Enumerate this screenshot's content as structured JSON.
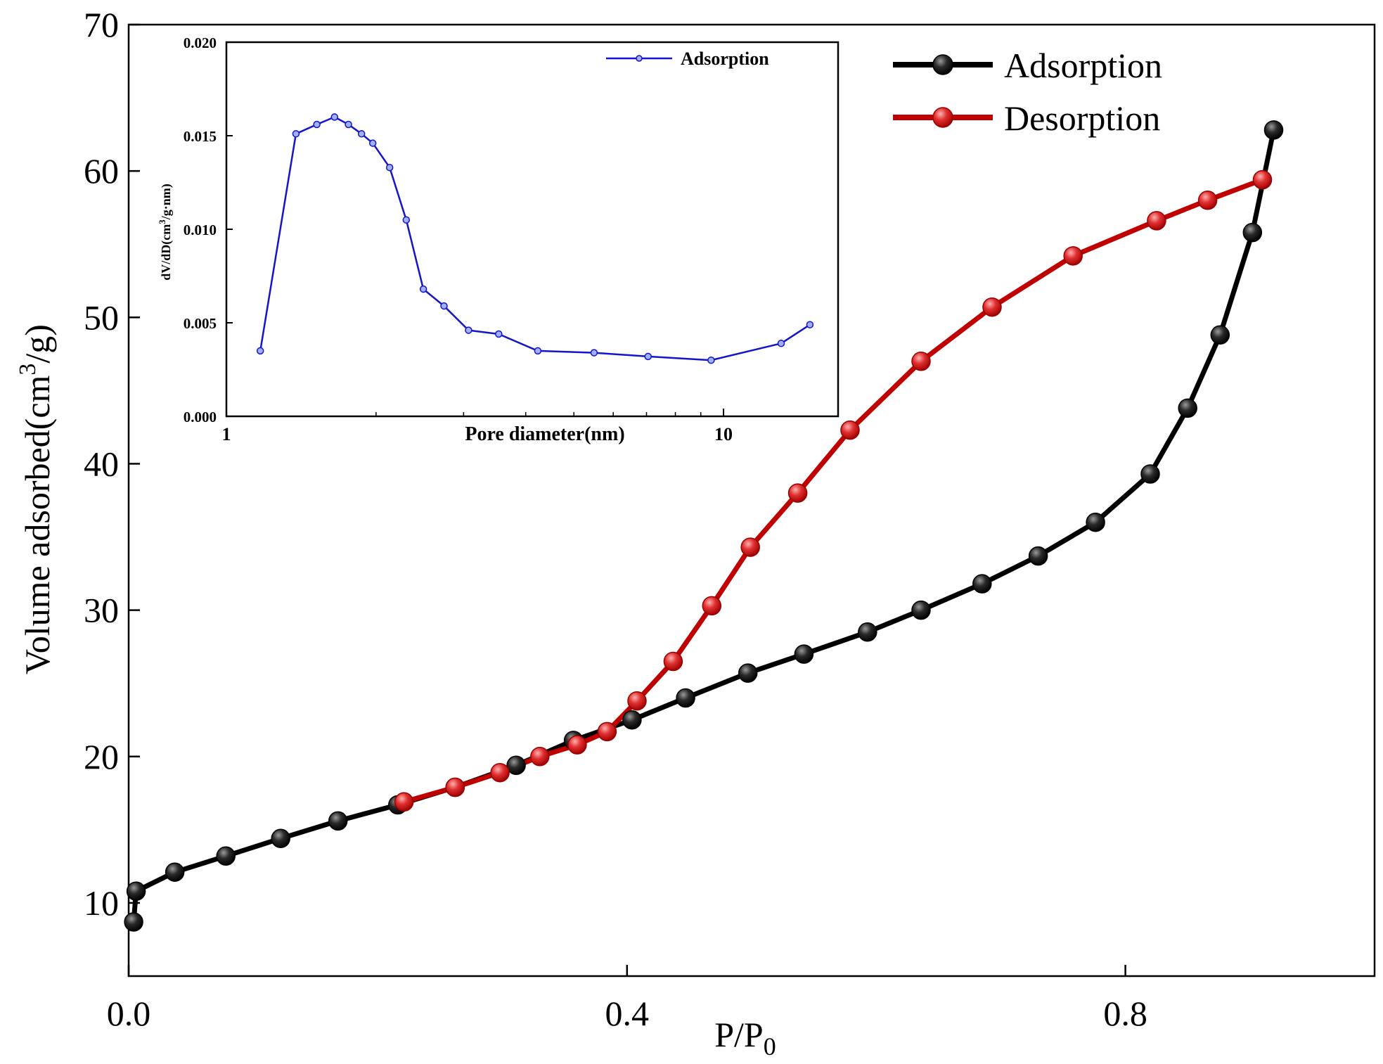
{
  "chart_data": [
    {
      "type": "line",
      "xlabel": "P/P",
      "xlabel_sub": "0",
      "ylabel": "Volume adsorbed(cm",
      "ylabel_sup": "3",
      "ylabel_tail": "/g)",
      "xlim": [
        0.0,
        1.0
      ],
      "ylim": [
        5,
        70
      ],
      "xticks": [
        0.0,
        0.4,
        0.8
      ],
      "xtick_labels": [
        "0.0",
        "0.4",
        "0.8"
      ],
      "yticks": [
        10,
        20,
        30,
        40,
        50,
        60,
        70
      ],
      "ytick_labels": [
        "10",
        "20",
        "30",
        "40",
        "50",
        "60",
        "70"
      ],
      "grid": false,
      "legend_position": "top-right",
      "series": [
        {
          "name": "Adsorption",
          "color": "#000000",
          "marker_color": "#1a1a1a",
          "x": [
            0.004,
            0.006,
            0.037,
            0.078,
            0.122,
            0.168,
            0.216,
            0.262,
            0.311,
            0.357,
            0.404,
            0.447,
            0.497,
            0.542,
            0.593,
            0.636,
            0.685,
            0.73,
            0.776,
            0.82,
            0.85,
            0.876,
            0.902,
            0.919
          ],
          "y": [
            8.7,
            10.8,
            12.1,
            13.2,
            14.4,
            15.6,
            16.7,
            17.9,
            19.4,
            21.1,
            22.5,
            24.0,
            25.7,
            27.0,
            28.5,
            30.0,
            31.8,
            33.7,
            36.0,
            39.3,
            43.8,
            48.8,
            55.8,
            62.8
          ]
        },
        {
          "name": "Desorption",
          "color": "#c00000",
          "marker_color": "#d02020",
          "x": [
            0.221,
            0.262,
            0.298,
            0.33,
            0.36,
            0.384,
            0.408,
            0.437,
            0.468,
            0.499,
            0.537,
            0.579,
            0.636,
            0.693,
            0.758,
            0.825,
            0.866,
            0.91
          ],
          "y": [
            16.9,
            17.9,
            18.9,
            20.0,
            20.8,
            21.7,
            23.8,
            26.5,
            30.3,
            34.3,
            38.0,
            42.3,
            47.0,
            50.7,
            54.2,
            56.6,
            58.0,
            59.4
          ]
        }
      ]
    },
    {
      "type": "line",
      "xlabel": "Pore diameter(nm)",
      "ylabel": "dV/dD(cm",
      "ylabel_sup": "3",
      "ylabel_tail": "/g·nm)",
      "x_scale": "log",
      "xlim": [
        1,
        17
      ],
      "ylim": [
        0.0,
        0.02
      ],
      "xtick_labels": [
        "1",
        "10"
      ],
      "xticks": [
        1,
        10
      ],
      "yticks": [
        0.0,
        0.005,
        0.01,
        0.015,
        0.02
      ],
      "ytick_labels": [
        "0.000",
        "0.005",
        "0.010",
        "0.015",
        "0.020"
      ],
      "grid": false,
      "legend_position": "top-right",
      "series": [
        {
          "name": "Adsorption",
          "color": "#1414c8",
          "x": [
            1.17,
            1.38,
            1.52,
            1.65,
            1.76,
            1.87,
            1.97,
            2.13,
            2.3,
            2.49,
            2.74,
            3.07,
            3.53,
            4.23,
            5.49,
            7.05,
            9.44,
            13.06,
            14.92
          ],
          "y": [
            0.0035,
            0.0151,
            0.0156,
            0.016,
            0.0156,
            0.0151,
            0.0146,
            0.0133,
            0.0105,
            0.0068,
            0.0059,
            0.0046,
            0.0044,
            0.0035,
            0.0034,
            0.0032,
            0.003,
            0.0039,
            0.0049
          ]
        }
      ]
    }
  ]
}
